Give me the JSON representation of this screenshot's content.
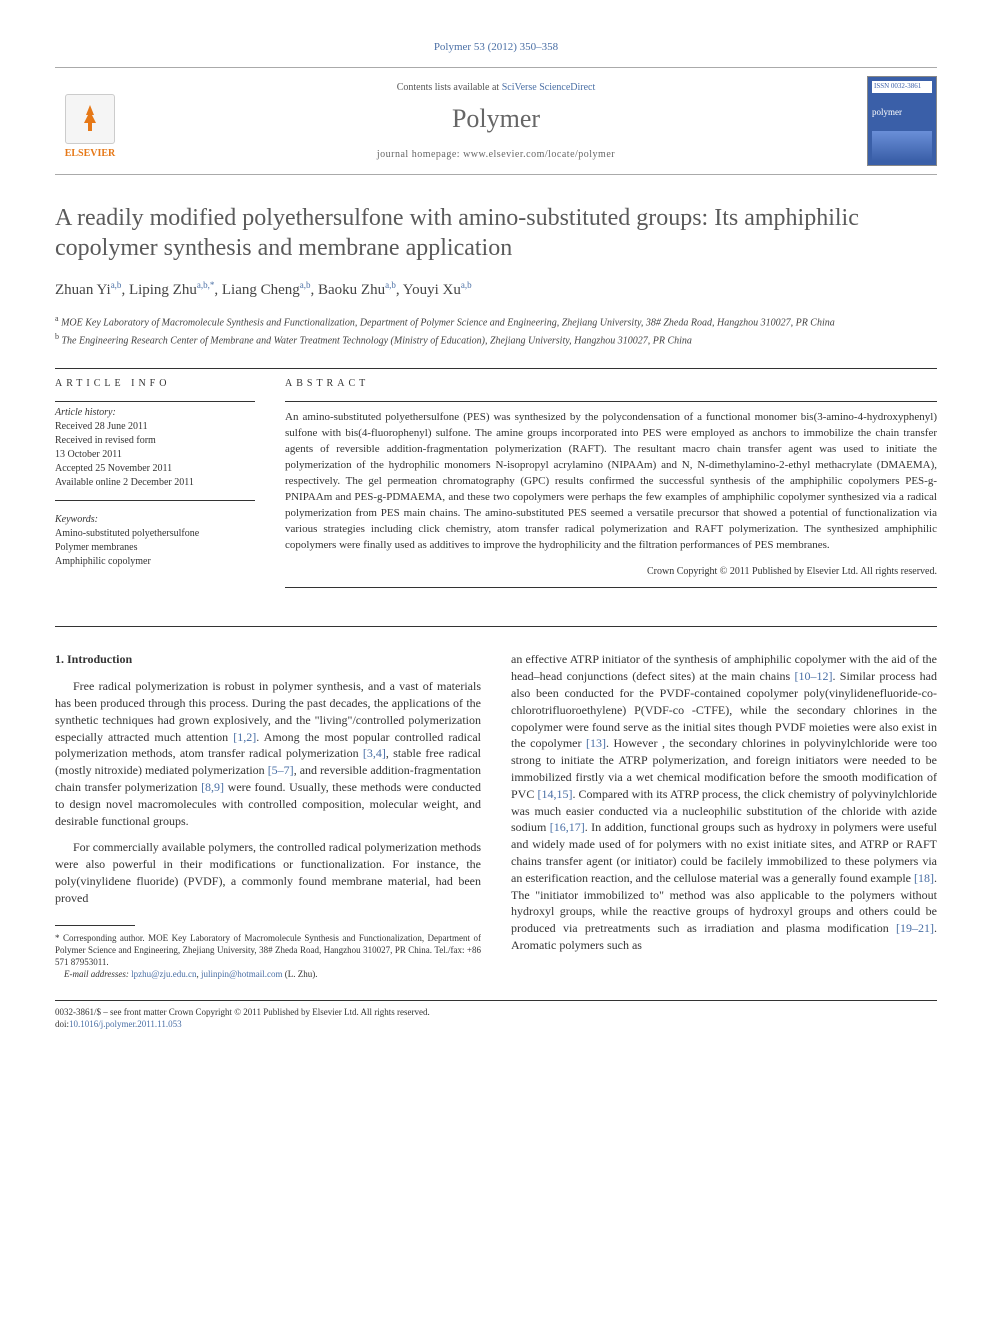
{
  "citation": "Polymer 53 (2012) 350–358",
  "header": {
    "contents_prefix": "Contents lists available at ",
    "contents_link": "SciVerse ScienceDirect",
    "journal_name": "Polymer",
    "homepage_prefix": "journal homepage: ",
    "homepage_url": "www.elsevier.com/locate/polymer",
    "publisher_label": "ELSEVIER",
    "cover_issn": "ISSN 0032-3861",
    "cover_title": "polymer"
  },
  "title": "A readily modified polyethersulfone with amino-substituted groups: Its amphiphilic copolymer synthesis and membrane application",
  "authors_html": "Zhuan Yi|a,b|, Liping Zhu|a,b,*|, Liang Cheng|a,b|, Baoku Zhu|a,b|, Youyi Xu|a,b|",
  "authors": [
    {
      "name": "Zhuan Yi",
      "sup": "a,b"
    },
    {
      "name": "Liping Zhu",
      "sup": "a,b,*"
    },
    {
      "name": "Liang Cheng",
      "sup": "a,b"
    },
    {
      "name": "Baoku Zhu",
      "sup": "a,b"
    },
    {
      "name": "Youyi Xu",
      "sup": "a,b"
    }
  ],
  "affiliations": [
    {
      "sup": "a",
      "text": "MOE Key Laboratory of Macromolecule Synthesis and Functionalization, Department of Polymer Science and Engineering, Zhejiang University, 38# Zheda Road, Hangzhou 310027, PR China"
    },
    {
      "sup": "b",
      "text": "The Engineering Research Center of Membrane and Water Treatment Technology (Ministry of Education), Zhejiang University, Hangzhou 310027, PR China"
    }
  ],
  "article_info": {
    "heading": "ARTICLE INFO",
    "history_label": "Article history:",
    "history": [
      "Received 28 June 2011",
      "Received in revised form",
      "13 October 2011",
      "Accepted 25 November 2011",
      "Available online 2 December 2011"
    ],
    "keywords_label": "Keywords:",
    "keywords": [
      "Amino-substituted polyethersulfone",
      "Polymer membranes",
      "Amphiphilic copolymer"
    ]
  },
  "abstract": {
    "heading": "ABSTRACT",
    "text": "An amino-substituted polyethersulfone (PES) was synthesized by the polycondensation of a functional monomer bis(3-amino-4-hydroxyphenyl) sulfone with bis(4-fluorophenyl) sulfone. The amine groups incorporated into PES were employed as anchors to immobilize the chain transfer agents of reversible addition-fragmentation polymerization (RAFT). The resultant macro chain transfer agent was used to initiate the polymerization of the hydrophilic monomers N-isopropyl acrylamino (NIPAAm) and N, N-dimethylamino-2-ethyl methacrylate (DMAEMA), respectively. The gel permeation chromatography (GPC) results confirmed the successful synthesis of the amphiphilic copolymers PES-g-PNIPAAm and PES-g-PDMAEMA, and these two copolymers were perhaps the few examples of amphiphilic copolymer synthesized via a radical polymerization from PES main chains. The amino-substituted PES seemed a versatile precursor that showed a potential of functionalization via various strategies including click chemistry, atom transfer radical polymerization and RAFT polymerization. The synthesized amphiphilic copolymers were finally used as additives to improve the hydrophilicity and the filtration performances of PES membranes.",
    "copyright": "Crown Copyright © 2011 Published by Elsevier Ltd. All rights reserved."
  },
  "body": {
    "section_heading": "1. Introduction",
    "col1_p1": "Free radical polymerization is robust in polymer synthesis, and a vast of materials has been produced through this process. During the past decades, the applications of the synthetic techniques had grown explosively, and the \"living\"/controlled polymerization especially attracted much attention [1,2]. Among the most popular controlled radical polymerization methods, atom transfer radical polymerization [3,4], stable free radical (mostly nitroxide) mediated polymerization [5–7], and reversible addition-fragmentation chain transfer polymerization [8,9] were found. Usually, these methods were conducted to design novel macromolecules with controlled composition, molecular weight, and desirable functional groups.",
    "col1_p2": "For commercially available polymers, the controlled radical polymerization methods were also powerful in their modifications or functionalization. For instance, the poly(vinylidene fluoride) (PVDF), a commonly found membrane material, had been proved",
    "col2_p1": "an effective ATRP initiator of the synthesis of amphiphilic copolymer with the aid of the head–head conjunctions (defect sites) at the main chains [10–12]. Similar process had also been conducted for the PVDF-contained copolymer poly(vinylidenefluoride-co-chlorotrifluoroethylene) P(VDF-co -CTFE), while the secondary chlorines in the copolymer were found serve as the initial sites though PVDF moieties were also exist in the copolymer [13]. However , the secondary chlorines in polyvinylchloride were too strong to initiate the ATRP polymerization, and foreign initiators were needed to be immobilized firstly via a wet chemical modification before the smooth modification of PVC [14,15]. Compared with its ATRP process, the click chemistry of polyvinylchloride was much easier conducted via a nucleophilic substitution of the chloride with azide sodium [16,17]. In addition, functional groups such as hydroxy in polymers were useful and widely made used of for polymers with no exist initiate sites, and ATRP or RAFT chains transfer agent (or initiator) could be facilely immobilized to these polymers via an esterification reaction, and the cellulose material was a generally found example [18]. The \"initiator immobilized to\" method was also applicable to the polymers without hydroxyl groups, while the reactive groups of hydroxyl groups and others could be produced via pretreatments such as irradiation and plasma modification [19–21]. Aromatic polymers such as"
  },
  "corresponding": {
    "star": "*",
    "text": "Corresponding author. MOE Key Laboratory of Macromolecule Synthesis and Functionalization, Department of Polymer Science and Engineering, Zhejiang University, 38# Zheda Road, Hangzhou 310027, PR China. Tel./fax: +86 571 87953011.",
    "email_label": "E-mail addresses:",
    "email1": "lpzhu@zju.edu.cn",
    "email2": "julinpin@hotmail.com",
    "email_suffix": "(L. Zhu)."
  },
  "footer": {
    "line1": "0032-3861/$ – see front matter Crown Copyright © 2011 Published by Elsevier Ltd. All rights reserved.",
    "doi_prefix": "doi:",
    "doi": "10.1016/j.polymer.2011.11.053"
  },
  "refs": {
    "r1": "[1,2]",
    "r2": "[3,4]",
    "r3": "[5–7]",
    "r4": "[8,9]",
    "r5": "[10–12]",
    "r6": "[13]",
    "r7": "[14,15]",
    "r8": "[16,17]",
    "r9": "[18]",
    "r10": "[19–21]"
  }
}
